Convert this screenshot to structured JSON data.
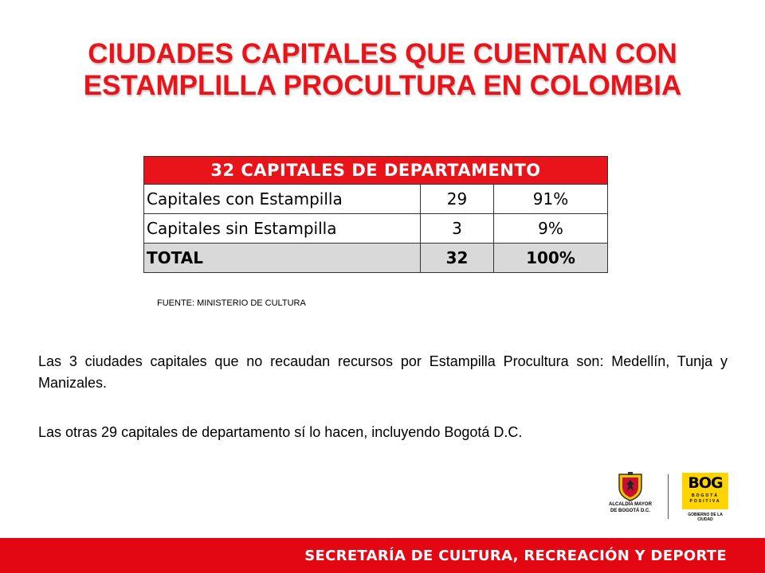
{
  "title": {
    "line1": "CIUDADES CAPITALES QUE CUENTAN CON",
    "line2": "ESTAMPLILLA PROCULTURA EN COLOMBIA"
  },
  "table": {
    "header": "32 CAPITALES DE DEPARTAMENTO",
    "rows": [
      {
        "label": "Capitales con Estampilla",
        "count": "29",
        "percent": "91%"
      },
      {
        "label": "Capitales sin Estampilla",
        "count": "3",
        "percent": "9%"
      }
    ],
    "total": {
      "label": "TOTAL",
      "count": "32",
      "percent": "100%"
    }
  },
  "source": "FUENTE:  MINISTERIO  DE CULTURA",
  "paragraphs": [
    "Las 3 ciudades capitales que no recaudan recursos por Estampilla Procultura son: Medellín, Tunja y Manizales.",
    "Las otras 29 capitales de departamento sí lo hacen, incluyendo Bogotá D.C."
  ],
  "logos": {
    "alcaldia_line1": "ALCALDÍA MAYOR",
    "alcaldia_line2": "DE BOGOTÁ D.C.",
    "bog_word": "BOG",
    "bog_sub1": "BOGOTÁ",
    "bog_sub2": "POSITIVA",
    "bog_caption": "GOBIERNO DE LA CIUDAD"
  },
  "footer": "SECRETARÍA DE CULTURA, RECREACIÓN Y DEPORTE",
  "colors": {
    "accent": "#e8141a",
    "footer": "#e30613",
    "total_row": "#d9d9d9",
    "bog_yellow": "#ffd400"
  }
}
